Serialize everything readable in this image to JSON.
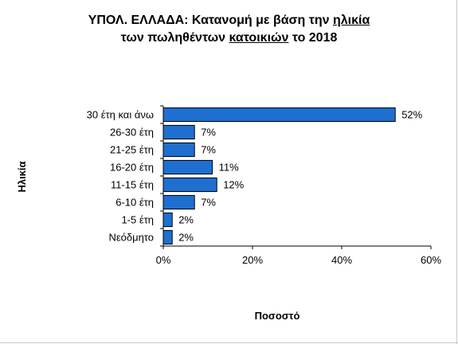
{
  "chart_data": {
    "type": "bar",
    "orientation": "horizontal",
    "title": {
      "line1_pre": "ΥΠΟΛ.  ΕΛΛΑΔΑ:  Κατανομή με βάση την ",
      "line1_u": "ηλικία",
      "line2_pre": "των πωληθέντων ",
      "line2_u": "κατοικιών",
      "line2_post": " το 2018"
    },
    "ylabel": "Ηλικία",
    "xlabel": "Ποσοστό",
    "categories": [
      "30 έτη και άνω",
      "26-30 έτη",
      "21-25 έτη",
      "16-20 έτη",
      "11-15 έτη",
      "6-10 έτη",
      "1-5 έτη",
      "Νεόδμητο"
    ],
    "values": [
      52,
      7,
      7,
      11,
      12,
      7,
      2,
      2
    ],
    "data_labels": [
      "52%",
      "7%",
      "7%",
      "11%",
      "12%",
      "7%",
      "2%",
      "2%"
    ],
    "xlim": [
      0,
      60
    ],
    "xticks": [
      "0%",
      "20%",
      "40%",
      "60%"
    ],
    "bar_color": "#1f6fd1",
    "grid": false,
    "legend": "none"
  }
}
